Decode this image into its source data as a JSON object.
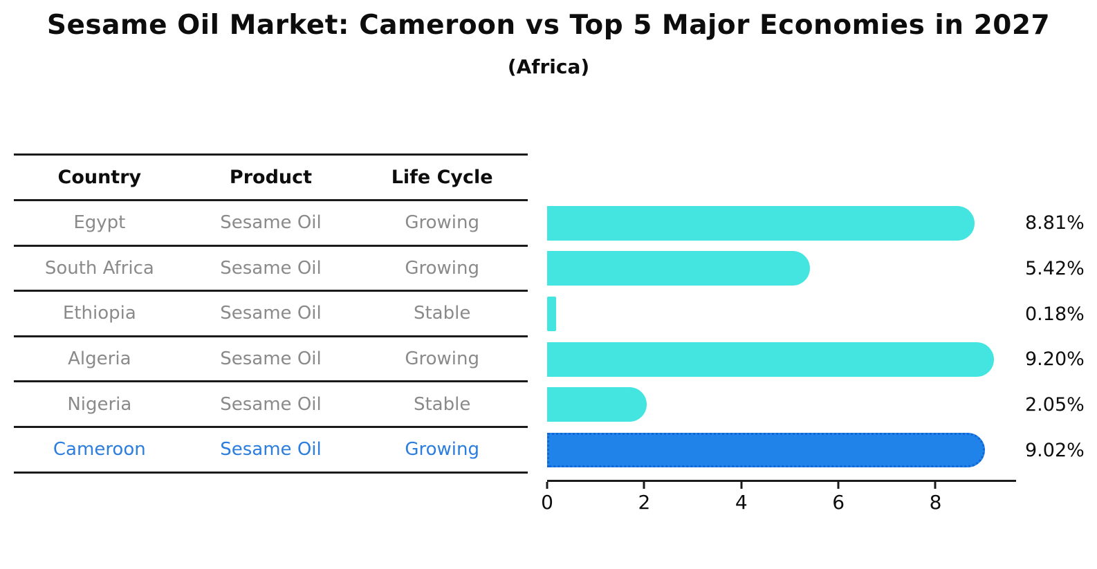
{
  "title": "Sesame Oil Market: Cameroon vs Top 5 Major Economies in 2027",
  "subtitle": "(Africa)",
  "table": {
    "headers": {
      "country": "Country",
      "product": "Product",
      "life_cycle": "Life Cycle"
    }
  },
  "rows": [
    {
      "country": "Egypt",
      "product": "Sesame Oil",
      "life_cycle": "Growing",
      "value": 8.81,
      "value_label": "8.81%",
      "highlight": false
    },
    {
      "country": "South Africa",
      "product": "Sesame Oil",
      "life_cycle": "Growing",
      "value": 5.42,
      "value_label": "5.42%",
      "highlight": false
    },
    {
      "country": "Ethiopia",
      "product": "Sesame Oil",
      "life_cycle": "Stable",
      "value": 0.18,
      "value_label": "0.18%",
      "highlight": false
    },
    {
      "country": "Algeria",
      "product": "Sesame Oil",
      "life_cycle": "Growing",
      "value": 9.2,
      "value_label": "9.20%",
      "highlight": false
    },
    {
      "country": "Nigeria",
      "product": "Sesame Oil",
      "life_cycle": "Stable",
      "value": 2.05,
      "value_label": "2.05%",
      "highlight": false
    },
    {
      "country": "Cameroon",
      "product": "Sesame Oil",
      "life_cycle": "Growing",
      "value": 9.02,
      "value_label": "9.02%",
      "highlight": true
    }
  ],
  "chart_data": {
    "type": "bar",
    "orientation": "horizontal",
    "title": "Sesame Oil Market: Cameroon vs Top 5 Major Economies in 2027",
    "subtitle": "(Africa)",
    "categories": [
      "Egypt",
      "South Africa",
      "Ethiopia",
      "Algeria",
      "Nigeria",
      "Cameroon"
    ],
    "values": [
      8.81,
      5.42,
      0.18,
      9.2,
      2.05,
      9.02
    ],
    "data_labels": [
      "8.81%",
      "5.42%",
      "0.18%",
      "9.20%",
      "2.05%",
      "9.02%"
    ],
    "xlabel": "",
    "ylabel": "",
    "xticks": [
      0,
      2,
      4,
      6,
      8
    ],
    "xlim": [
      0,
      9.66
    ],
    "grid": false,
    "legend": false,
    "bar_color": "#44e5e0",
    "highlight_color": "#2083ea",
    "highlight_edge_color": "#1365d6",
    "highlight_index": 5
  },
  "colors": {
    "title_text": "#0d0d0d",
    "muted_text": "#8a8a8a",
    "highlight_text": "#2b7dde",
    "line": "#1a1a1a"
  }
}
